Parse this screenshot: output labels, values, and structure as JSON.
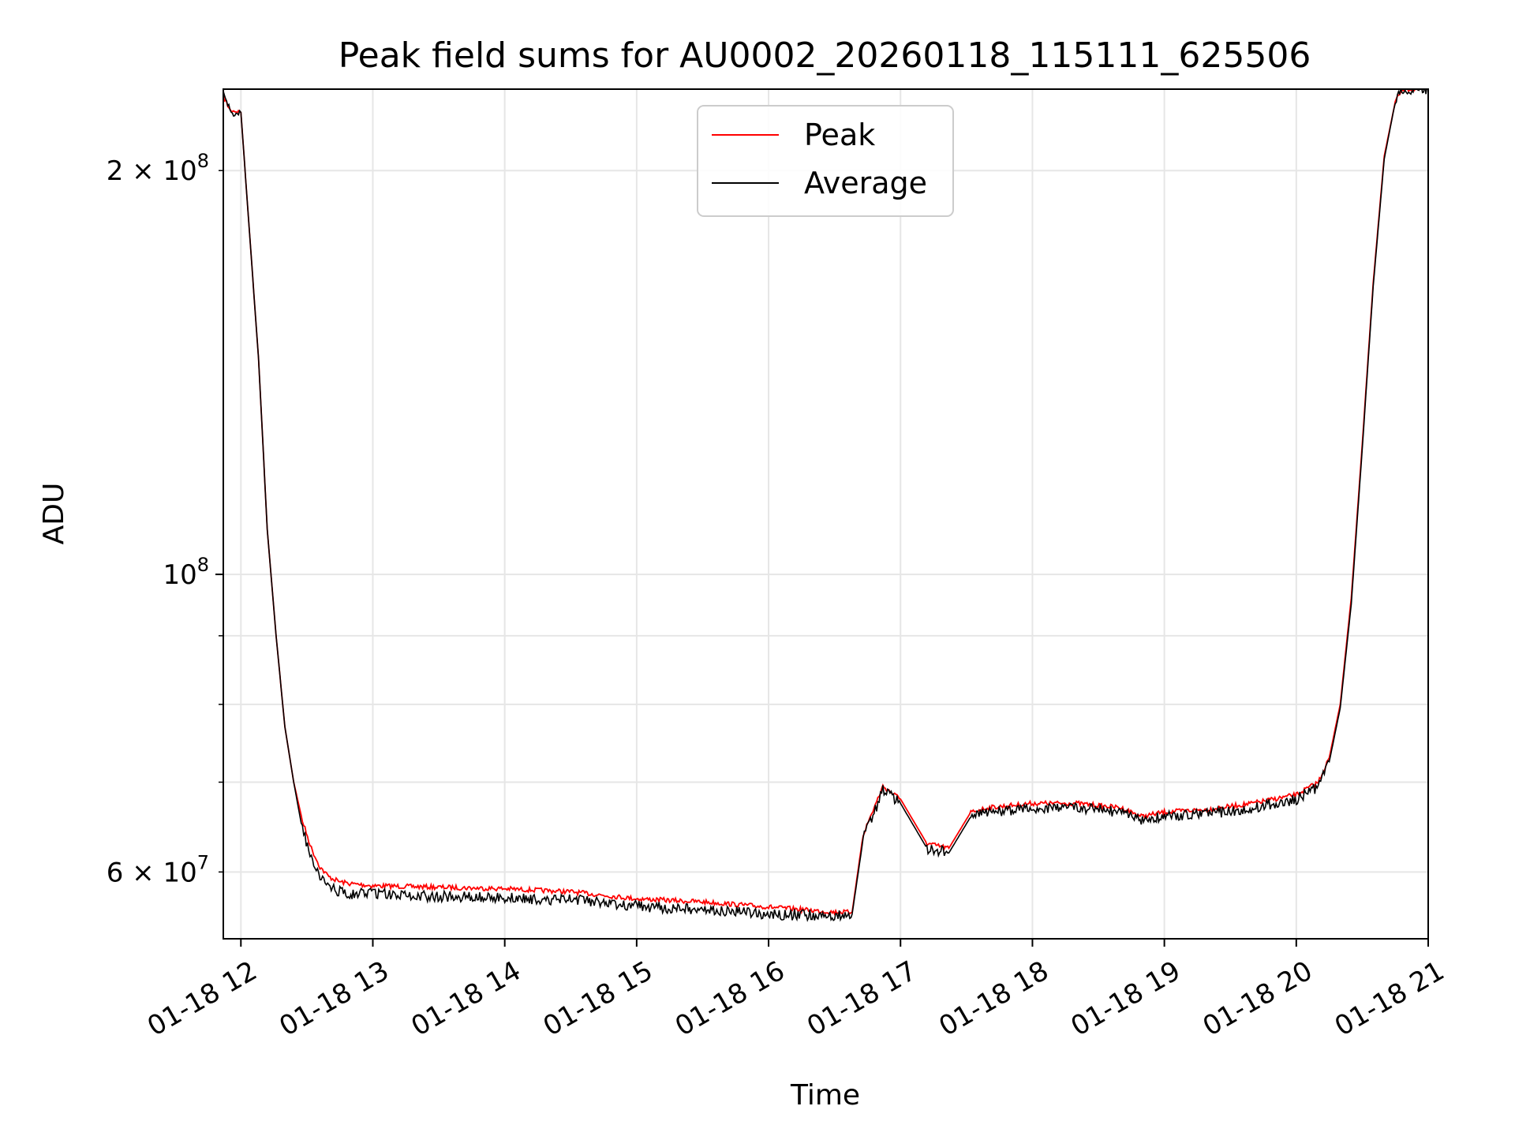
{
  "chart_data": {
    "type": "line",
    "title": "Peak field sums for AU0002_20260118_115111_625506",
    "xlabel": "Time",
    "ylabel": "ADU",
    "x_type": "datetime",
    "xlim": [
      "2026-01-18T11:52",
      "2026-01-18T21:00"
    ],
    "ylim": [
      53500000,
      230000000
    ],
    "yscale": "log",
    "grid": true,
    "legend_position": "upper center",
    "x_ticks": [
      {
        "value": "2026-01-18T12:00",
        "label": "01-18 12"
      },
      {
        "value": "2026-01-18T13:00",
        "label": "01-18 13"
      },
      {
        "value": "2026-01-18T14:00",
        "label": "01-18 14"
      },
      {
        "value": "2026-01-18T15:00",
        "label": "01-18 15"
      },
      {
        "value": "2026-01-18T16:00",
        "label": "01-18 16"
      },
      {
        "value": "2026-01-18T17:00",
        "label": "01-18 17"
      },
      {
        "value": "2026-01-18T18:00",
        "label": "01-18 18"
      },
      {
        "value": "2026-01-18T19:00",
        "label": "01-18 19"
      },
      {
        "value": "2026-01-18T20:00",
        "label": "01-18 20"
      },
      {
        "value": "2026-01-18T21:00",
        "label": "01-18 21"
      }
    ],
    "y_major_ticks": [
      {
        "value": 100000000,
        "base": "10",
        "exp": "8"
      }
    ],
    "y_minor_ticks": [
      {
        "value": 60000000,
        "mantissa": "6",
        "base": "10",
        "exp": "7",
        "labeled": true
      },
      {
        "value": 70000000,
        "labeled": false
      },
      {
        "value": 80000000,
        "labeled": false
      },
      {
        "value": 90000000,
        "labeled": false
      },
      {
        "value": 200000000,
        "mantissa": "2",
        "base": "10",
        "exp": "8",
        "labeled": true
      }
    ],
    "series": [
      {
        "name": "Peak",
        "color": "#ff0000",
        "x": [
          "2026-01-18T11:52",
          "2026-01-18T11:55",
          "2026-01-18T12:00",
          "2026-01-18T12:08",
          "2026-01-18T12:12",
          "2026-01-18T12:16",
          "2026-01-18T12:20",
          "2026-01-18T12:24",
          "2026-01-18T12:28",
          "2026-01-18T12:32",
          "2026-01-18T12:36",
          "2026-01-18T12:40",
          "2026-01-18T12:45",
          "2026-01-18T12:50",
          "2026-01-18T13:00",
          "2026-01-18T13:20",
          "2026-01-18T13:40",
          "2026-01-18T14:00",
          "2026-01-18T14:30",
          "2026-01-18T15:00",
          "2026-01-18T15:30",
          "2026-01-18T16:00",
          "2026-01-18T16:30",
          "2026-01-18T16:38",
          "2026-01-18T16:43",
          "2026-01-18T16:48",
          "2026-01-18T16:52",
          "2026-01-18T17:00",
          "2026-01-18T17:12",
          "2026-01-18T17:22",
          "2026-01-18T17:32",
          "2026-01-18T17:40",
          "2026-01-18T18:00",
          "2026-01-18T18:20",
          "2026-01-18T18:40",
          "2026-01-18T18:50",
          "2026-01-18T19:00",
          "2026-01-18T19:20",
          "2026-01-18T19:40",
          "2026-01-18T20:00",
          "2026-01-18T20:10",
          "2026-01-18T20:15",
          "2026-01-18T20:20",
          "2026-01-18T20:25",
          "2026-01-18T20:30",
          "2026-01-18T20:35",
          "2026-01-18T20:40",
          "2026-01-18T20:45",
          "2026-01-18T20:48",
          "2026-01-18T20:50",
          "2026-01-18T21:00"
        ],
        "y": [
          227000000,
          222000000,
          221000000,
          145000000,
          108000000,
          90000000,
          77000000,
          70000000,
          65500000,
          62500000,
          60500000,
          59500000,
          59000000,
          58800000,
          58600000,
          58500000,
          58400000,
          58300000,
          58000000,
          57300000,
          57000000,
          56500000,
          56000000,
          56000000,
          64000000,
          67000000,
          69500000,
          68000000,
          63000000,
          62500000,
          66500000,
          67000000,
          67500000,
          67500000,
          67000000,
          66000000,
          66500000,
          66800000,
          67500000,
          68500000,
          70000000,
          73000000,
          80000000,
          96000000,
          125000000,
          165000000,
          205000000,
          225000000,
          230000000,
          230000000,
          230000000
        ]
      },
      {
        "name": "Average",
        "color": "#000000",
        "x": [
          "2026-01-18T11:52",
          "2026-01-18T11:55",
          "2026-01-18T12:00",
          "2026-01-18T12:08",
          "2026-01-18T12:12",
          "2026-01-18T12:16",
          "2026-01-18T12:20",
          "2026-01-18T12:24",
          "2026-01-18T12:28",
          "2026-01-18T12:32",
          "2026-01-18T12:36",
          "2026-01-18T12:40",
          "2026-01-18T12:45",
          "2026-01-18T12:50",
          "2026-01-18T13:00",
          "2026-01-18T13:20",
          "2026-01-18T13:40",
          "2026-01-18T14:00",
          "2026-01-18T14:30",
          "2026-01-18T15:00",
          "2026-01-18T15:30",
          "2026-01-18T16:00",
          "2026-01-18T16:30",
          "2026-01-18T16:38",
          "2026-01-18T16:43",
          "2026-01-18T16:48",
          "2026-01-18T16:52",
          "2026-01-18T17:00",
          "2026-01-18T17:12",
          "2026-01-18T17:22",
          "2026-01-18T17:32",
          "2026-01-18T17:40",
          "2026-01-18T18:00",
          "2026-01-18T18:20",
          "2026-01-18T18:40",
          "2026-01-18T18:50",
          "2026-01-18T19:00",
          "2026-01-18T19:20",
          "2026-01-18T19:40",
          "2026-01-18T20:00",
          "2026-01-18T20:10",
          "2026-01-18T20:15",
          "2026-01-18T20:20",
          "2026-01-18T20:25",
          "2026-01-18T20:30",
          "2026-01-18T20:35",
          "2026-01-18T20:40",
          "2026-01-18T20:45",
          "2026-01-18T20:48",
          "2026-01-18T20:50",
          "2026-01-18T21:00"
        ],
        "y": [
          227000000,
          222000000,
          221000000,
          145000000,
          108000000,
          90000000,
          77000000,
          70000000,
          64500000,
          61500000,
          59500000,
          58500000,
          58000000,
          57800000,
          57800000,
          57600000,
          57500000,
          57400000,
          57200000,
          56600000,
          56200000,
          55800000,
          55700000,
          55800000,
          63500000,
          66500000,
          69000000,
          67500000,
          62500000,
          62000000,
          66000000,
          66500000,
          67000000,
          67000000,
          66500000,
          65500000,
          66000000,
          66300000,
          67000000,
          68000000,
          69500000,
          72500000,
          79500000,
          95000000,
          124000000,
          164000000,
          204000000,
          225000000,
          230000000,
          230000000,
          230000000
        ]
      }
    ],
    "legend": [
      {
        "label": "Peak",
        "color": "#ff0000"
      },
      {
        "label": "Average",
        "color": "#000000"
      }
    ]
  }
}
